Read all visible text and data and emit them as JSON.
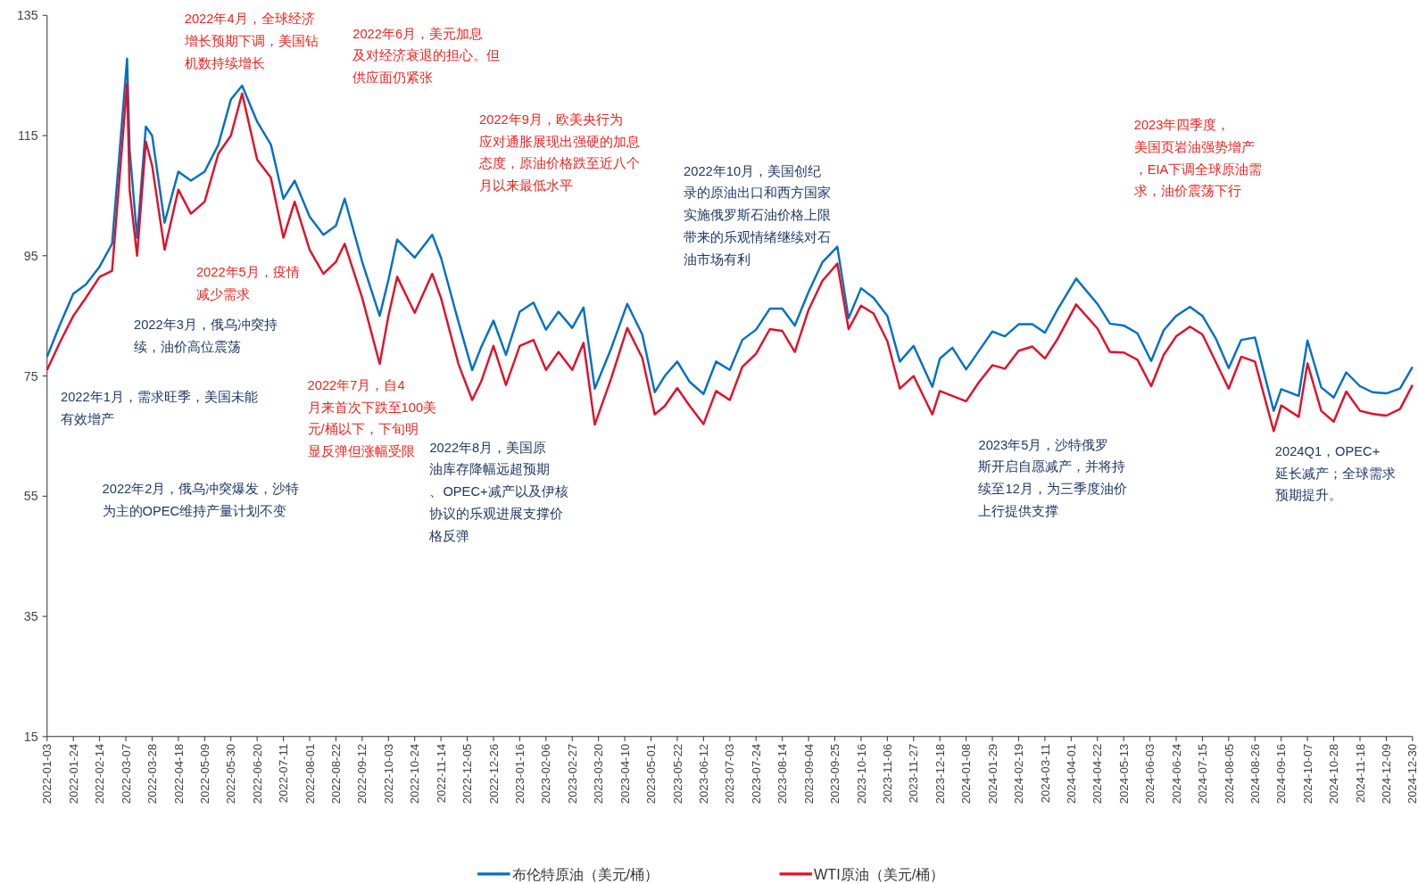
{
  "chart_data": {
    "type": "line",
    "legend": "bottom",
    "grid": false,
    "xlim": [
      "2022-01-03",
      "2024-12-30"
    ],
    "xticks": [
      "2022-01-03",
      "2022-01-24",
      "2022-02-14",
      "2022-03-07",
      "2022-03-28",
      "2022-04-18",
      "2022-05-09",
      "2022-05-30",
      "2022-06-20",
      "2022-07-11",
      "2022-08-01",
      "2022-08-22",
      "2022-09-12",
      "2022-10-03",
      "2022-10-24",
      "2022-11-14",
      "2022-12-05",
      "2022-12-26",
      "2023-01-16",
      "2023-02-06",
      "2023-02-27",
      "2023-03-20",
      "2023-04-10",
      "2023-05-01",
      "2023-05-22",
      "2023-06-12",
      "2023-07-03",
      "2023-07-24",
      "2023-08-14",
      "2023-09-04",
      "2023-09-25",
      "2023-10-16",
      "2023-11-06",
      "2023-11-27",
      "2023-12-18",
      "2024-01-08",
      "2024-01-29",
      "2024-02-19",
      "2024-03-11",
      "2024-04-01",
      "2024-04-22",
      "2024-05-13",
      "2024-06-03",
      "2024-06-24",
      "2024-07-15",
      "2024-08-05",
      "2024-08-26",
      "2024-09-16",
      "2024-10-07",
      "2024-10-28",
      "2024-11-18",
      "2024-12-09",
      "2024-12-30"
    ],
    "ylim": [
      15,
      135
    ],
    "yticks": [
      15,
      35,
      55,
      75,
      95,
      115,
      135
    ],
    "x": [
      "2022-01-03",
      "2022-01-13",
      "2022-01-24",
      "2022-02-03",
      "2022-02-14",
      "2022-02-24",
      "2022-03-08",
      "2022-03-10",
      "2022-03-16",
      "2022-03-23",
      "2022-03-28",
      "2022-04-07",
      "2022-04-18",
      "2022-04-28",
      "2022-05-09",
      "2022-05-20",
      "2022-05-30",
      "2022-06-08",
      "2022-06-20",
      "2022-07-01",
      "2022-07-11",
      "2022-07-20",
      "2022-08-01",
      "2022-08-12",
      "2022-08-22",
      "2022-08-29",
      "2022-09-12",
      "2022-09-26",
      "2022-10-03",
      "2022-10-10",
      "2022-10-24",
      "2022-11-07",
      "2022-11-14",
      "2022-11-28",
      "2022-12-09",
      "2022-12-16",
      "2022-12-26",
      "2023-01-05",
      "2023-01-16",
      "2023-01-27",
      "2023-02-06",
      "2023-02-16",
      "2023-02-27",
      "2023-03-08",
      "2023-03-17",
      "2023-03-30",
      "2023-04-12",
      "2023-04-24",
      "2023-05-04",
      "2023-05-12",
      "2023-05-22",
      "2023-06-01",
      "2023-06-12",
      "2023-06-22",
      "2023-07-03",
      "2023-07-13",
      "2023-07-24",
      "2023-08-04",
      "2023-08-14",
      "2023-08-24",
      "2023-09-04",
      "2023-09-15",
      "2023-09-27",
      "2023-10-06",
      "2023-10-16",
      "2023-10-26",
      "2023-11-06",
      "2023-11-16",
      "2023-11-27",
      "2023-12-12",
      "2023-12-18",
      "2023-12-28",
      "2024-01-08",
      "2024-01-18",
      "2024-01-29",
      "2024-02-08",
      "2024-02-19",
      "2024-03-01",
      "2024-03-11",
      "2024-03-21",
      "2024-04-05",
      "2024-04-22",
      "2024-05-02",
      "2024-05-13",
      "2024-05-24",
      "2024-06-04",
      "2024-06-14",
      "2024-06-24",
      "2024-07-05",
      "2024-07-15",
      "2024-07-26",
      "2024-08-05",
      "2024-08-15",
      "2024-08-26",
      "2024-09-10",
      "2024-09-16",
      "2024-09-30",
      "2024-10-07",
      "2024-10-18",
      "2024-10-28",
      "2024-11-07",
      "2024-11-18",
      "2024-11-28",
      "2024-12-09",
      "2024-12-20",
      "2024-12-30"
    ],
    "series": [
      {
        "name": "布伦特原油（美元/桶）",
        "color": "#0070c0",
        "values": [
          78.2,
          83.4,
          88.7,
          90.2,
          93.2,
          97.0,
          127.8,
          112.7,
          98.0,
          116.5,
          115.0,
          100.5,
          109.0,
          107.5,
          109.0,
          113.5,
          121.0,
          123.3,
          117.3,
          113.5,
          104.5,
          107.5,
          101.5,
          98.5,
          100.0,
          104.5,
          94.0,
          85.0,
          91.0,
          97.7,
          94.7,
          98.5,
          94.7,
          84.0,
          76.0,
          79.7,
          84.2,
          78.5,
          85.7,
          87.2,
          82.7,
          85.7,
          83.0,
          86.4,
          72.9,
          79.5,
          87.0,
          81.9,
          72.3,
          75.0,
          77.4,
          74.0,
          72.0,
          77.4,
          76.0,
          81.0,
          82.7,
          86.2,
          86.2,
          83.4,
          89.0,
          93.9,
          96.5,
          84.6,
          89.6,
          88.0,
          85.0,
          77.4,
          80.0,
          73.2,
          77.9,
          79.7,
          76.1,
          79.1,
          82.4,
          81.6,
          83.6,
          83.6,
          82.2,
          86.0,
          91.2,
          87.0,
          83.7,
          83.4,
          82.1,
          77.5,
          82.6,
          85.0,
          86.5,
          85.0,
          81.1,
          76.3,
          81.0,
          81.4,
          69.2,
          72.8,
          71.7,
          80.9,
          73.1,
          71.4,
          75.6,
          73.3,
          72.3,
          72.1,
          72.9,
          76.5
        ]
      },
      {
        "name": "WTI原油（美元/桶）",
        "color": "#e0102a",
        "values": [
          76.0,
          80.5,
          85.0,
          88.0,
          91.5,
          92.5,
          123.7,
          106.0,
          95.0,
          114.0,
          110.0,
          96.0,
          106.0,
          102.0,
          104.0,
          112.0,
          115.0,
          122.0,
          111.0,
          108.0,
          98.0,
          104.0,
          96.0,
          92.0,
          94.0,
          97.0,
          88.0,
          77.0,
          85.0,
          91.5,
          85.5,
          92.0,
          88.0,
          77.0,
          71.0,
          74.0,
          80.0,
          73.5,
          80.0,
          81.0,
          76.0,
          79.0,
          76.0,
          80.5,
          66.9,
          74.5,
          83.0,
          78.0,
          68.6,
          70.0,
          73.0,
          70.0,
          67.0,
          72.5,
          71.0,
          76.5,
          78.7,
          82.8,
          82.5,
          79.0,
          86.0,
          90.8,
          93.7,
          82.8,
          86.7,
          85.4,
          80.8,
          72.9,
          75.0,
          68.6,
          72.5,
          71.7,
          70.8,
          73.9,
          76.8,
          76.2,
          79.2,
          79.9,
          77.9,
          81.1,
          86.9,
          82.9,
          79.0,
          78.9,
          77.7,
          73.3,
          78.5,
          81.6,
          83.2,
          81.9,
          77.2,
          72.9,
          78.2,
          77.4,
          65.8,
          70.1,
          68.2,
          77.1,
          69.2,
          67.4,
          72.4,
          69.2,
          68.7,
          68.4,
          69.5,
          73.5
        ]
      }
    ],
    "annotations": [
      "2022年1月，需求旺季，美国未能有效增产",
      "2022年2月，俄乌冲突爆发，沙特为主的OPEC维持产量计划不变",
      "2022年3月，俄乌冲突持续，油价高位震荡",
      "2022年4月，全球经济增长预期下调，美国钻机数持续增长",
      "2022年5月，疫情减少需求",
      "2022年6月，美元加息及对经济衰退的担心。但供应面仍紧张",
      "2022年7月，自4月来首次下跌至100美元/桶以下，下旬明显反弹但涨幅受限",
      "2022年8月，美国原油库存降幅远超预期、OPEC+减产以及伊核协议的乐观进展支撑价格反弹",
      "2022年9月，欧美央行为应对通胀展现出强硬的加息态度，原油价格跌至近八个月以来最低水平",
      "2022年10月，美国创纪录的原油出口和西方国家实施俄罗斯石油价格上限带来的乐观情绪继续对石油市场有利",
      "2023年5月，沙特俄罗斯开启自愿减产，并将持续至12月，为三季度油价上行提供支撑",
      "2023年四季度，美国页岩油强势增产，EIA下调全球原油需求，油价震荡下行",
      "2024Q1，OPEC+延长减产；全球需求预期提升。"
    ]
  }
}
